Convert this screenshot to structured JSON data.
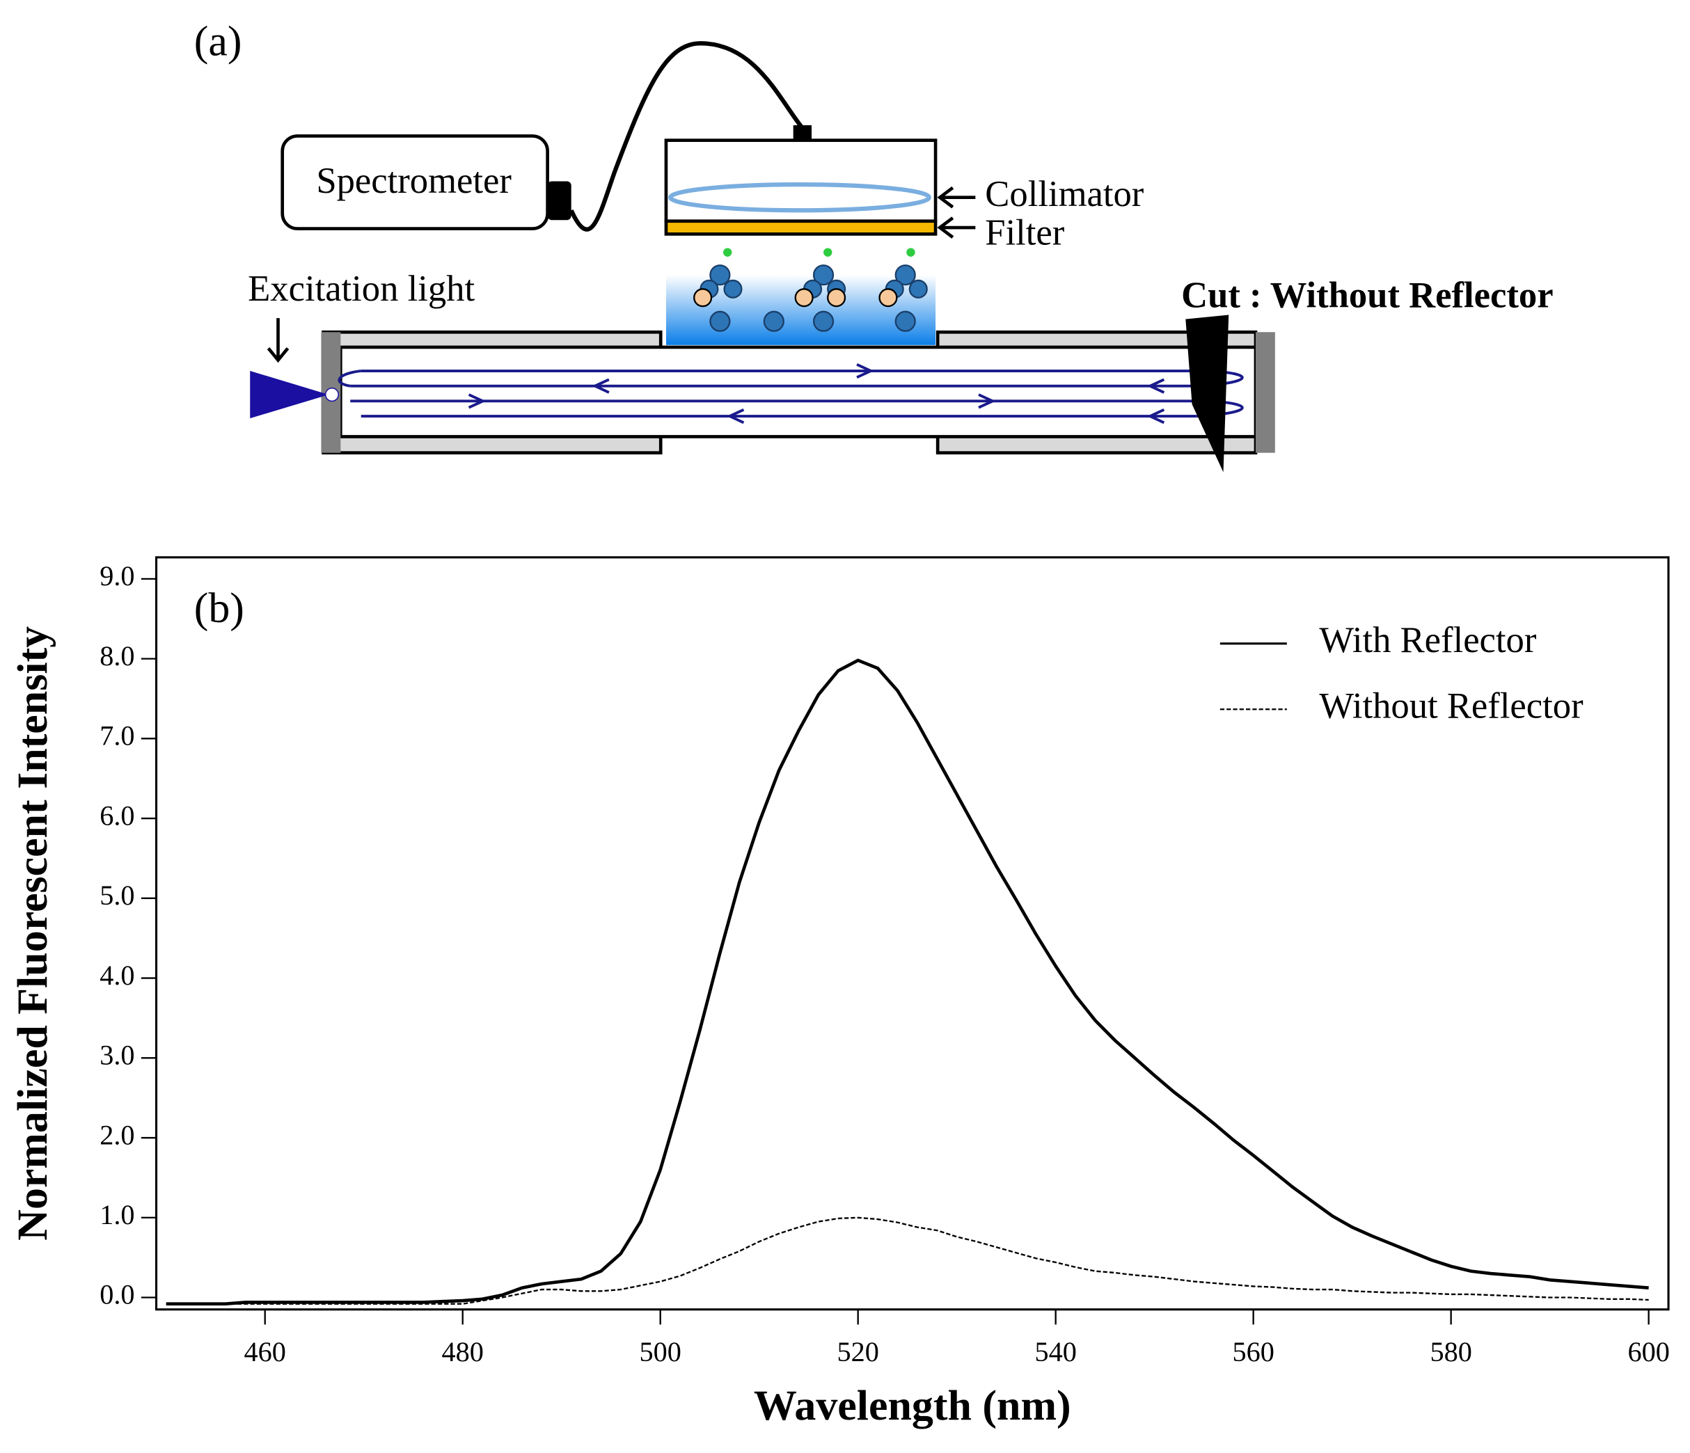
{
  "diagram": {
    "panel_label": "(a)",
    "spectrometer": "Spectrometer",
    "collimator": "Collimator",
    "filter": "Filter",
    "excitation": "Excitation light",
    "cut": "Cut : Without Reflector"
  },
  "chart_data": {
    "type": "line",
    "panel_label": "(b)",
    "x_label": "Wavelength (nm)",
    "y_label": "Normalized Fluorescent Intensity",
    "x": [
      450,
      452,
      454,
      456,
      458,
      460,
      462,
      464,
      466,
      468,
      470,
      472,
      474,
      476,
      478,
      480,
      482,
      484,
      486,
      488,
      490,
      492,
      494,
      496,
      498,
      500,
      502,
      504,
      506,
      508,
      510,
      512,
      514,
      516,
      518,
      520,
      522,
      524,
      526,
      528,
      530,
      532,
      534,
      536,
      538,
      540,
      542,
      544,
      546,
      548,
      550,
      552,
      554,
      556,
      558,
      560,
      562,
      564,
      566,
      568,
      570,
      572,
      574,
      576,
      578,
      580,
      582,
      584,
      586,
      588,
      590,
      592,
      594,
      596,
      598,
      600
    ],
    "series": [
      {
        "name": "With Reflector",
        "color": "#000000",
        "line_style": "solid",
        "values": [
          -0.08,
          -0.08,
          -0.08,
          -0.08,
          -0.06,
          -0.06,
          -0.06,
          -0.06,
          -0.06,
          -0.06,
          -0.06,
          -0.06,
          -0.06,
          -0.06,
          -0.05,
          -0.04,
          -0.02,
          0.03,
          0.12,
          0.17,
          0.2,
          0.23,
          0.33,
          0.55,
          0.95,
          1.6,
          2.45,
          3.35,
          4.3,
          5.2,
          5.95,
          6.6,
          7.1,
          7.55,
          7.85,
          7.98,
          7.88,
          7.6,
          7.2,
          6.75,
          6.3,
          5.85,
          5.4,
          4.98,
          4.55,
          4.15,
          3.78,
          3.47,
          3.22,
          3.0,
          2.78,
          2.57,
          2.38,
          2.18,
          1.97,
          1.78,
          1.58,
          1.38,
          1.2,
          1.02,
          0.88,
          0.77,
          0.67,
          0.57,
          0.47,
          0.39,
          0.33,
          0.3,
          0.28,
          0.26,
          0.22,
          0.2,
          0.18,
          0.16,
          0.14,
          0.12
        ]
      },
      {
        "name": "Without Reflector",
        "color": "#000000",
        "line_style": "dashed",
        "values": [
          -0.08,
          -0.08,
          -0.08,
          -0.08,
          -0.08,
          -0.08,
          -0.08,
          -0.08,
          -0.08,
          -0.08,
          -0.08,
          -0.08,
          -0.08,
          -0.08,
          -0.08,
          -0.08,
          -0.04,
          0.0,
          0.05,
          0.1,
          0.1,
          0.08,
          0.08,
          0.1,
          0.15,
          0.2,
          0.27,
          0.37,
          0.48,
          0.58,
          0.7,
          0.8,
          0.88,
          0.95,
          0.99,
          1.0,
          0.98,
          0.94,
          0.88,
          0.84,
          0.76,
          0.7,
          0.63,
          0.56,
          0.49,
          0.44,
          0.38,
          0.33,
          0.31,
          0.28,
          0.26,
          0.23,
          0.2,
          0.18,
          0.16,
          0.14,
          0.13,
          0.11,
          0.1,
          0.1,
          0.08,
          0.07,
          0.06,
          0.06,
          0.05,
          0.04,
          0.04,
          0.03,
          0.02,
          0.01,
          0.0,
          0.0,
          -0.01,
          -0.02,
          -0.02,
          -0.03
        ]
      }
    ],
    "xlim": [
      449,
      602
    ],
    "xticks": [
      460,
      480,
      500,
      520,
      540,
      560,
      580,
      600
    ],
    "ylim": [
      -0.15,
      9.27
    ],
    "yticks": [
      {
        "value": 0,
        "label": "0.0"
      },
      {
        "value": 1,
        "label": "1.0"
      },
      {
        "value": 2,
        "label": "2.0"
      },
      {
        "value": 3,
        "label": "3.0"
      },
      {
        "value": 4,
        "label": "4.0"
      },
      {
        "value": 5,
        "label": "5.0"
      },
      {
        "value": 6,
        "label": "6.0"
      },
      {
        "value": 7,
        "label": "7.0"
      },
      {
        "value": 8,
        "label": "8.0"
      },
      {
        "value": 9,
        "label": "9.0"
      }
    ],
    "legend": "upper right"
  }
}
